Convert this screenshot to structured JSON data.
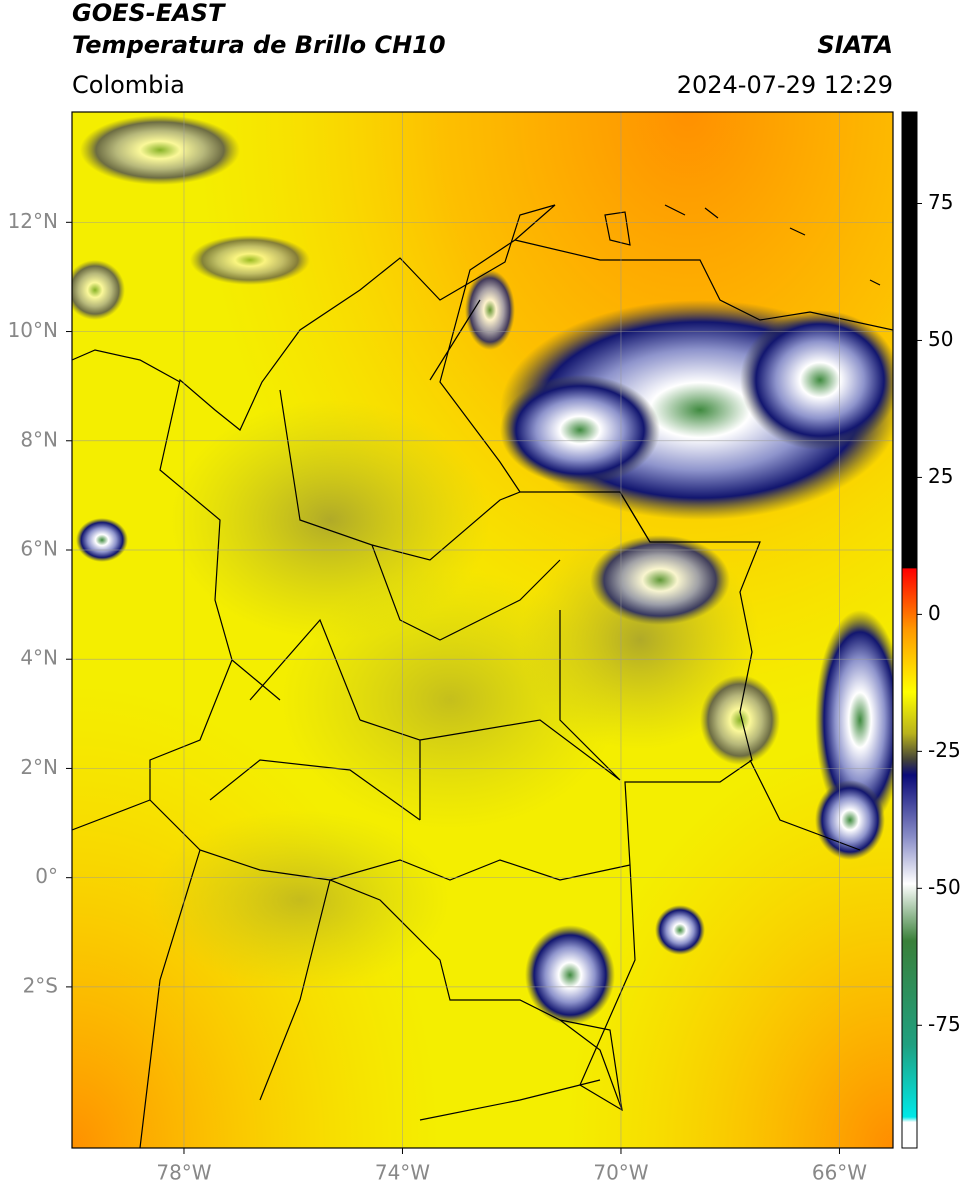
{
  "header": {
    "title": "GOES-EAST",
    "subtitle": "Temperatura de Brillo CH10",
    "source": "SIATA",
    "region": "Colombia",
    "datetime": "2024-07-29 12:29"
  },
  "map": {
    "lonlim": [
      -80.05,
      -65.02
    ],
    "latlim": [
      -4.95,
      14.02
    ],
    "lon_ticks": [
      {
        "value": -78,
        "label": "78°W"
      },
      {
        "value": -74,
        "label": "74°W"
      },
      {
        "value": -70,
        "label": "70°W"
      },
      {
        "value": -66,
        "label": "66°W"
      }
    ],
    "lat_ticks": [
      {
        "value": 12,
        "label": "12°N"
      },
      {
        "value": 10,
        "label": "10°N"
      },
      {
        "value": 8,
        "label": "8°N"
      },
      {
        "value": 6,
        "label": "6°N"
      },
      {
        "value": 4,
        "label": "4°N"
      },
      {
        "value": 2,
        "label": "2°N"
      },
      {
        "value": 0,
        "label": "0°"
      },
      {
        "value": -2,
        "label": "2°S"
      }
    ]
  },
  "colorbar": {
    "lim": [
      -97.4,
      91.7
    ],
    "ticks": [
      75,
      50,
      25,
      0,
      -25,
      -50,
      -75
    ]
  }
}
